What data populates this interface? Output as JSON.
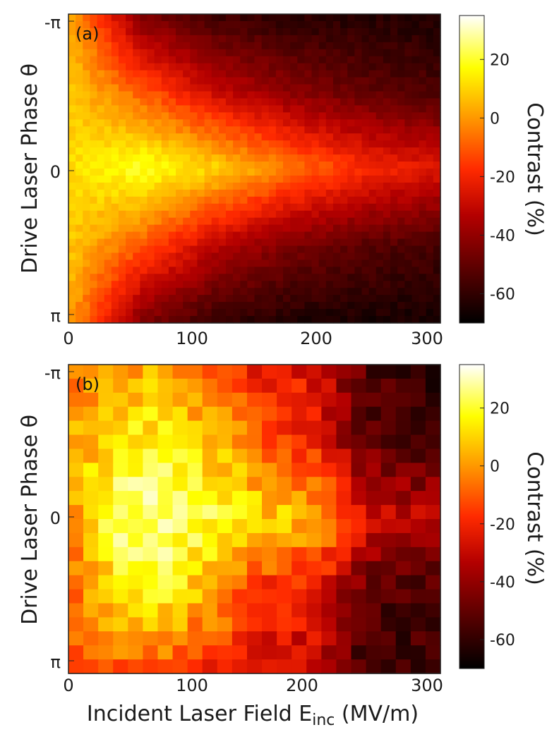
{
  "figure": {
    "xlabel_main": "Incident Laser Field E",
    "xlabel_sub": "inc",
    "xlabel_unit": " (MV/m)"
  },
  "chart_data": [
    {
      "type": "heatmap",
      "panel_label": "(a)",
      "ylabel": "Drive Laser Phase θ",
      "xlim": [
        0,
        300
      ],
      "x_ticks": [
        "0",
        "100",
        "200",
        "300"
      ],
      "y_ticks": [
        "-π",
        "0",
        "π"
      ],
      "colorbar": {
        "label": "Contrast (%)",
        "range": [
          -70,
          35
        ],
        "ticks": [
          "20",
          "0",
          "-20",
          "-40",
          "-60"
        ],
        "tick_values": [
          20,
          0,
          -20,
          -40,
          -60
        ]
      },
      "x_centers": [
        0,
        60,
        120,
        180,
        240,
        300
      ],
      "phase_rows": [
        "-π",
        "-π/2",
        "0",
        "π/2",
        "π"
      ],
      "values": [
        [
          5,
          -45,
          -58,
          -62,
          -63,
          -64
        ],
        [
          8,
          -10,
          -30,
          -42,
          -50,
          -55
        ],
        [
          12,
          20,
          10,
          -5,
          -18,
          -25
        ],
        [
          8,
          -10,
          -32,
          -45,
          -52,
          -56
        ],
        [
          2,
          -45,
          -60,
          -64,
          -65,
          -66
        ]
      ]
    },
    {
      "type": "heatmap",
      "panel_label": "(b)",
      "ylabel": "Drive Laser Phase θ",
      "xlim": [
        0,
        300
      ],
      "x_ticks": [
        "0",
        "100",
        "200",
        "300"
      ],
      "y_ticks": [
        "-π",
        "0",
        "π"
      ],
      "colorbar": {
        "label": "Contrast (%)",
        "range": [
          -70,
          35
        ],
        "ticks": [
          "20",
          "0",
          "-20",
          "-40",
          "-60"
        ],
        "tick_values": [
          20,
          0,
          -20,
          -40,
          -60
        ]
      },
      "x_centers": [
        0,
        40,
        80,
        120,
        160,
        200,
        240,
        300
      ],
      "phase_rows": [
        "-π",
        "-π/2",
        "0",
        "π/2",
        "π"
      ],
      "values": [
        [
          -5,
          -2,
          5,
          -15,
          -25,
          -25,
          -55,
          -60
        ],
        [
          0,
          15,
          18,
          5,
          -10,
          -20,
          -50,
          -55
        ],
        [
          0,
          25,
          28,
          18,
          10,
          5,
          -25,
          -35
        ],
        [
          -10,
          12,
          15,
          0,
          -20,
          -25,
          -55,
          -55
        ],
        [
          -15,
          -10,
          -15,
          -20,
          -25,
          -30,
          -60,
          -60
        ]
      ]
    }
  ]
}
